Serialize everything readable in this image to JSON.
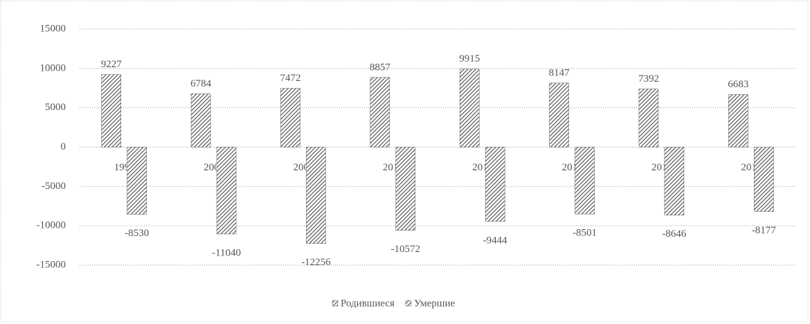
{
  "chart_data": {
    "type": "bar",
    "categories": [
      "1990",
      "2000",
      "2005",
      "2010",
      "2015",
      "2016",
      "2017",
      "2018"
    ],
    "series": [
      {
        "name": "Родившиеся",
        "color": "#555555",
        "values": [
          9227,
          6784,
          7472,
          8857,
          9915,
          8147,
          7392,
          6683
        ]
      },
      {
        "name": "Умершие",
        "color": "#555555",
        "values": [
          -8530,
          -11040,
          -12256,
          -10572,
          -9444,
          -8501,
          -8646,
          -8177
        ]
      }
    ],
    "ylim": [
      -15000,
      15000
    ],
    "yticks": [
      -15000,
      -10000,
      -5000,
      0,
      5000,
      10000,
      15000
    ],
    "grid": true,
    "legend": "bottom"
  }
}
